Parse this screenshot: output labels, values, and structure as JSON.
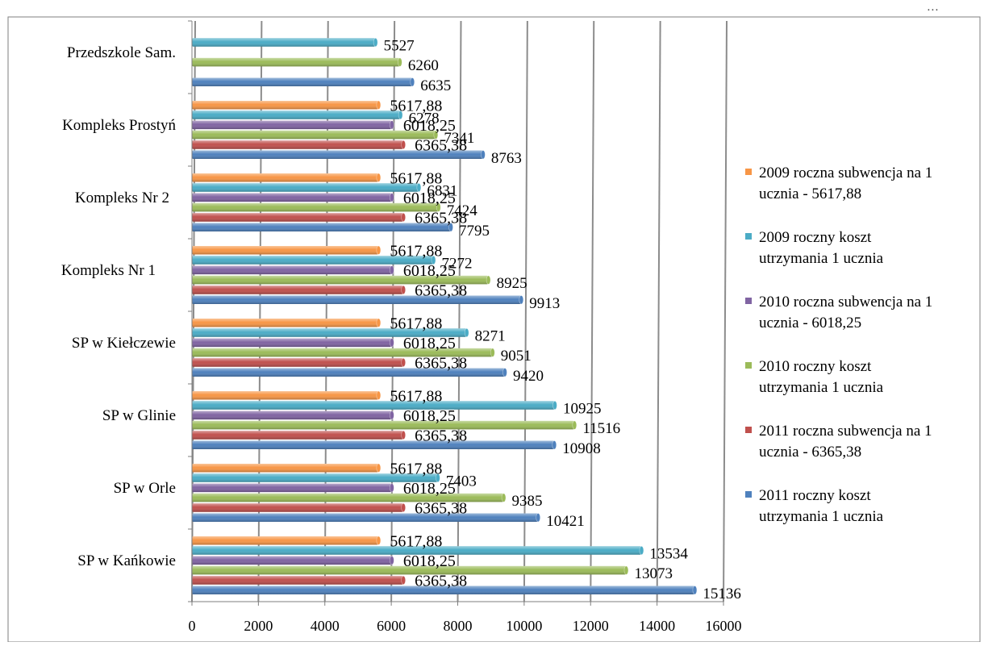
{
  "header_fragment": "…",
  "chart_data": {
    "type": "bar",
    "orientation": "horizontal",
    "title": "",
    "xlabel": "",
    "ylabel": "",
    "xlim": [
      0,
      16000
    ],
    "x_ticks": [
      "0",
      "2000",
      "4000",
      "6000",
      "8000",
      "10000",
      "12000",
      "14000",
      "16000"
    ],
    "grid": "vertical",
    "legend_position": "right",
    "categories": [
      "SP w Kańkowie",
      "SP w Orle",
      "SP w Glinie",
      "SP w Kiełczewie",
      "Kompleks Nr 1",
      "Kompleks Nr 2",
      "Kompleks Prostyń",
      "Przedszkole Sam."
    ],
    "series": [
      {
        "name": "2011 roczny koszt utrzymania 1 ucznia",
        "legend_lines": [
          "2011 roczny koszt",
          "utrzymania 1 ucznia"
        ],
        "color": "#4F81BD",
        "values": [
          15136,
          10421,
          10908,
          9420,
          9913,
          7795,
          8763,
          6635
        ],
        "labels": [
          "15136",
          "10421",
          "10908",
          "9420",
          "9913",
          "7795",
          "8763",
          "6635"
        ]
      },
      {
        "name": "2011 roczna subwencja na 1 ucznia - 6365,38",
        "legend_lines": [
          "2011 roczna subwencja na 1",
          "ucznia  -  6365,38"
        ],
        "color": "#C0504D",
        "values": [
          6365.38,
          6365.38,
          6365.38,
          6365.38,
          6365.38,
          6365.38,
          6365.38,
          null
        ],
        "labels": [
          "6365,38",
          "6365,38",
          "6365,38",
          "6365,38",
          "6365,38",
          "6365,38",
          "6365,38",
          null
        ]
      },
      {
        "name": "2010 roczny koszt utrzymania 1 ucznia",
        "legend_lines": [
          "2010 roczny koszt",
          "utrzymania 1 ucznia"
        ],
        "color": "#9BBB59",
        "values": [
          13073,
          9385,
          11516,
          9051,
          8925,
          7424,
          7341,
          6260
        ],
        "labels": [
          "13073",
          "9385",
          "11516",
          "9051",
          "8925",
          "7424",
          "7341",
          "6260"
        ]
      },
      {
        "name": "2010 roczna subwencja na 1 ucznia - 6018,25",
        "legend_lines": [
          "2010 roczna subwencja na 1",
          "ucznia  -  6018,25"
        ],
        "color": "#8064A2",
        "values": [
          6018.25,
          6018.25,
          6018.25,
          6018.25,
          6018.25,
          6018.25,
          6018.25,
          null
        ],
        "labels": [
          "6018,25",
          "6018,25",
          "6018,25",
          "6018,25",
          "6018,25",
          "6018,25",
          "6018,25",
          null
        ]
      },
      {
        "name": "2009 roczny koszt utrzymania 1 ucznia",
        "legend_lines": [
          "2009 roczny koszt",
          "utrzymania 1 ucznia"
        ],
        "color": "#4BACC6",
        "values": [
          13534,
          7403,
          10925,
          8271,
          7272,
          6831,
          6278,
          5527
        ],
        "labels": [
          "13534",
          "7403",
          "10925",
          "8271",
          "7272",
          "6831",
          "6278",
          "5527"
        ]
      },
      {
        "name": "2009 roczna subwencja na 1 ucznia - 5617,88",
        "legend_lines": [
          "2009 roczna subwencja na 1",
          "ucznia  -  5617,88"
        ],
        "color": "#F79646",
        "values": [
          5617.88,
          5617.88,
          5617.88,
          5617.88,
          5617.88,
          5617.88,
          5617.88,
          null
        ],
        "labels": [
          "5617,88",
          "5617,88",
          "5617,88",
          "5617,88",
          "5617,88",
          "5617,88",
          "5617,88",
          null
        ]
      }
    ]
  }
}
